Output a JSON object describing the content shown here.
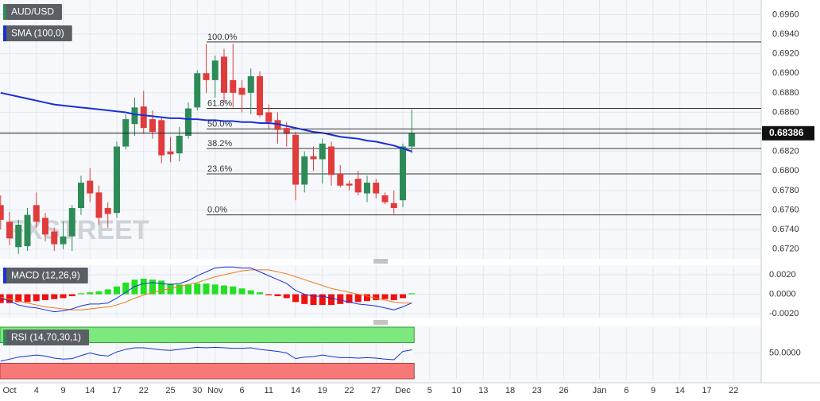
{
  "chart_data": [
    {
      "type": "candlestick",
      "title": "AUD/USD",
      "watermark": "FXSTREET",
      "ylim": [
        0.671,
        0.6975
      ],
      "yticks": [
        {
          "value": 0.672,
          "label": "0.6720"
        },
        {
          "value": 0.674,
          "label": "0.6740"
        },
        {
          "value": 0.676,
          "label": "0.6760"
        },
        {
          "value": 0.678,
          "label": "0.6780"
        },
        {
          "value": 0.68,
          "label": "0.6800"
        },
        {
          "value": 0.682,
          "label": "0.6820"
        },
        {
          "value": 0.684,
          "label": "0.6840"
        },
        {
          "value": 0.686,
          "label": "0.6860"
        },
        {
          "value": 0.688,
          "label": "0.6880"
        },
        {
          "value": 0.69,
          "label": "0.6900"
        },
        {
          "value": 0.692,
          "label": "0.6920"
        },
        {
          "value": 0.694,
          "label": "0.6940"
        },
        {
          "value": 0.696,
          "label": "0.6960"
        }
      ],
      "xticks": [
        {
          "value": 1,
          "label": "Oct"
        },
        {
          "value": 4,
          "label": "4"
        },
        {
          "value": 7,
          "label": "9"
        },
        {
          "value": 10,
          "label": "14"
        },
        {
          "value": 13,
          "label": "17"
        },
        {
          "value": 16,
          "label": "22"
        },
        {
          "value": 19,
          "label": "25"
        },
        {
          "value": 22,
          "label": "30"
        },
        {
          "value": 24,
          "label": "Nov"
        },
        {
          "value": 27,
          "label": "6"
        },
        {
          "value": 30,
          "label": "11"
        },
        {
          "value": 33,
          "label": "14"
        },
        {
          "value": 36,
          "label": "19"
        },
        {
          "value": 39,
          "label": "22"
        },
        {
          "value": 42,
          "label": "27"
        },
        {
          "value": 45,
          "label": "Dec"
        },
        {
          "value": 48,
          "label": "5"
        },
        {
          "value": 51,
          "label": "10"
        },
        {
          "value": 54,
          "label": "13"
        },
        {
          "value": 57,
          "label": "18"
        },
        {
          "value": 60,
          "label": "23"
        },
        {
          "value": 63,
          "label": "26"
        },
        {
          "value": 67,
          "label": "Jan"
        },
        {
          "value": 70,
          "label": "6"
        },
        {
          "value": 73,
          "label": "9"
        },
        {
          "value": 76,
          "label": "14"
        },
        {
          "value": 79,
          "label": "17"
        },
        {
          "value": 82,
          "label": "22"
        }
      ],
      "up_color": "#2e8b57",
      "down_color": "#e03c3c",
      "open": [
        0.6765,
        0.6748,
        0.6722,
        0.6723,
        0.6765,
        0.6752,
        0.6738,
        0.6725,
        0.6733,
        0.6762,
        0.679,
        0.6778,
        0.6762,
        0.6757,
        0.6825,
        0.6848,
        0.6866,
        0.6853,
        0.6852,
        0.682,
        0.6818,
        0.6836,
        0.6865,
        0.69,
        0.6893,
        0.6917,
        0.6893,
        0.6885,
        0.688,
        0.6897,
        0.686,
        0.6852,
        0.6844,
        0.6837,
        0.6786,
        0.6815,
        0.6812,
        0.6825,
        0.6797,
        0.6787,
        0.6792,
        0.6777,
        0.6788,
        0.6775,
        0.6767,
        0.677,
        0.6825
      ],
      "high": [
        0.6775,
        0.6758,
        0.675,
        0.6762,
        0.6778,
        0.6757,
        0.6742,
        0.6748,
        0.6765,
        0.6795,
        0.6803,
        0.6785,
        0.6768,
        0.683,
        0.6858,
        0.6875,
        0.6882,
        0.6862,
        0.6855,
        0.6835,
        0.6845,
        0.687,
        0.6903,
        0.693,
        0.6918,
        0.6925,
        0.693,
        0.6893,
        0.6905,
        0.6902,
        0.6868,
        0.686,
        0.685,
        0.684,
        0.682,
        0.6825,
        0.6833,
        0.683,
        0.6806,
        0.679,
        0.68,
        0.6795,
        0.6792,
        0.6778,
        0.678,
        0.6828,
        0.6863
      ],
      "low": [
        0.674,
        0.6724,
        0.6715,
        0.6718,
        0.6742,
        0.6728,
        0.6718,
        0.672,
        0.6718,
        0.6755,
        0.6768,
        0.6745,
        0.6742,
        0.6752,
        0.6822,
        0.6836,
        0.6838,
        0.6833,
        0.6808,
        0.6809,
        0.681,
        0.6833,
        0.6862,
        0.688,
        0.6875,
        0.687,
        0.6865,
        0.686,
        0.6858,
        0.6855,
        0.6843,
        0.6828,
        0.6825,
        0.677,
        0.6778,
        0.68,
        0.6787,
        0.6785,
        0.6783,
        0.678,
        0.6775,
        0.6768,
        0.6772,
        0.6766,
        0.6756,
        0.6763,
        0.6818
      ],
      "close": [
        0.675,
        0.6731,
        0.6745,
        0.6755,
        0.6748,
        0.6735,
        0.6725,
        0.6733,
        0.6762,
        0.6788,
        0.6777,
        0.6752,
        0.6756,
        0.6825,
        0.6853,
        0.6865,
        0.6844,
        0.684,
        0.6816,
        0.6817,
        0.6836,
        0.6864,
        0.69,
        0.6893,
        0.6913,
        0.688,
        0.688,
        0.6878,
        0.6897,
        0.6857,
        0.685,
        0.6842,
        0.6838,
        0.6786,
        0.6815,
        0.6812,
        0.6828,
        0.6796,
        0.6785,
        0.6785,
        0.6778,
        0.6788,
        0.6777,
        0.6768,
        0.6762,
        0.6825,
        0.68386
      ],
      "series": [
        {
          "name": "SMA (100,0)",
          "color": "#1a2fd6",
          "values": [
            0.688,
            0.6878,
            0.6876,
            0.6874,
            0.6872,
            0.687,
            0.6868,
            0.6867,
            0.6866,
            0.6865,
            0.6864,
            0.6863,
            0.6862,
            0.6861,
            0.686,
            0.6858,
            0.6857,
            0.6856,
            0.6855,
            0.6854,
            0.6854,
            0.6853,
            0.6853,
            0.6852,
            0.6852,
            0.6851,
            0.6851,
            0.685,
            0.685,
            0.6849,
            0.6849,
            0.6848,
            0.6846,
            0.6844,
            0.6842,
            0.684,
            0.6839,
            0.6837,
            0.6835,
            0.6834,
            0.6833,
            0.6831,
            0.683,
            0.6828,
            0.6826,
            0.6823,
            0.682
          ]
        }
      ],
      "fib_levels": [
        {
          "level": {
            "value": 100,
            "label": "100.0%"
          },
          "price": 0.6932
        },
        {
          "level": {
            "value": 61.8,
            "label": "61.8%"
          },
          "price": 0.6864
        },
        {
          "level": {
            "value": 50,
            "label": "50.0%"
          },
          "price": 0.6843
        },
        {
          "level": {
            "value": 38.2,
            "label": "38.2%"
          },
          "price": 0.6823
        },
        {
          "level": {
            "value": 23.6,
            "label": "23.6%"
          },
          "price": 0.6797
        },
        {
          "level": {
            "value": 0,
            "label": "0.0%"
          },
          "price": 0.6755
        }
      ],
      "last_price": 0.68386
    },
    {
      "type": "macd",
      "title": "MACD (12,26,9)",
      "ylim": [
        -0.0024,
        0.0029
      ],
      "yticks": [
        {
          "value": -0.002,
          "label": "-0.0020"
        },
        {
          "value": 0,
          "label": "0.0000"
        },
        {
          "value": 0.002,
          "label": "0.0020"
        }
      ],
      "histogram": {
        "up_color": "#22e022",
        "down_color": "#f01010",
        "values": [
          -0.0009,
          -0.0009,
          -0.0008,
          -0.0008,
          -0.0007,
          -0.0006,
          -0.0005,
          -0.0004,
          -0.0002,
          0.0001,
          0.0002,
          0.0003,
          0.0005,
          0.0008,
          0.0012,
          0.0015,
          0.0016,
          0.0015,
          0.0014,
          0.0011,
          0.001,
          0.001,
          0.0011,
          0.0011,
          0.001,
          0.0009,
          0.0008,
          0.0006,
          0.0004,
          0.0002,
          -0.0001,
          -0.0002,
          -0.0004,
          -0.0008,
          -0.001,
          -0.0011,
          -0.0011,
          -0.0011,
          -0.001,
          -0.0009,
          -0.0008,
          -0.0007,
          -0.0006,
          -0.0005,
          -0.0006,
          -0.0004,
          0.0001
        ]
      },
      "macd_line": {
        "color": "#1a2fd6",
        "values": [
          -0.0004,
          -0.0007,
          -0.0011,
          -0.0013,
          -0.0014,
          -0.0016,
          -0.0018,
          -0.0017,
          -0.0015,
          -0.0012,
          -0.001,
          -0.001,
          -0.0009,
          -0.0004,
          0.0002,
          0.0008,
          0.0011,
          0.0012,
          0.0011,
          0.001,
          0.0011,
          0.0014,
          0.0019,
          0.0023,
          0.0027,
          0.0028,
          0.0028,
          0.0027,
          0.0027,
          0.0023,
          0.0019,
          0.0015,
          0.0011,
          0.0004,
          0,
          -0.0002,
          -0.0002,
          -0.0004,
          -0.0006,
          -0.0008,
          -0.001,
          -0.0011,
          -0.0012,
          -0.0014,
          -0.0016,
          -0.0013,
          -0.0009
        ]
      },
      "signal_line": {
        "color": "#f07a1a",
        "values": [
          -0.0003,
          -0.0005,
          -0.0007,
          -0.0009,
          -0.0011,
          -0.0013,
          -0.0014,
          -0.0015,
          -0.0016,
          -0.0016,
          -0.0015,
          -0.0014,
          -0.0013,
          -0.0011,
          -0.0008,
          -0.0004,
          -0.0001,
          0.0002,
          0.0004,
          0.0006,
          0.0008,
          0.001,
          0.0012,
          0.0015,
          0.0018,
          0.002,
          0.0022,
          0.0024,
          0.0025,
          0.0025,
          0.0025,
          0.0023,
          0.0021,
          0.0018,
          0.0015,
          0.0012,
          0.0009,
          0.0006,
          0.0004,
          0.0002,
          0,
          -0.0002,
          -0.0004,
          -0.0006,
          -0.0008,
          -0.0009,
          -0.0009
        ]
      }
    },
    {
      "type": "rsi",
      "title": "RSI (14,70,30,1)",
      "ylim": [
        0,
        100
      ],
      "yticks": [
        {
          "value": 50,
          "label": "50.0000"
        }
      ],
      "overbought": 70,
      "oversold": 30,
      "overbought_color": "#7de87d",
      "oversold_color": "#f87878",
      "color": "#1a2fd6",
      "values": [
        34,
        38,
        42,
        44,
        46,
        44,
        40,
        38,
        39,
        45,
        50,
        46,
        44,
        52,
        57,
        60,
        60,
        58,
        56,
        55,
        57,
        59,
        61,
        60,
        61,
        60,
        59,
        59,
        60,
        57,
        55,
        53,
        50,
        39,
        42,
        43,
        46,
        43,
        41,
        41,
        40,
        41,
        40,
        38,
        37,
        53,
        56
      ]
    }
  ]
}
